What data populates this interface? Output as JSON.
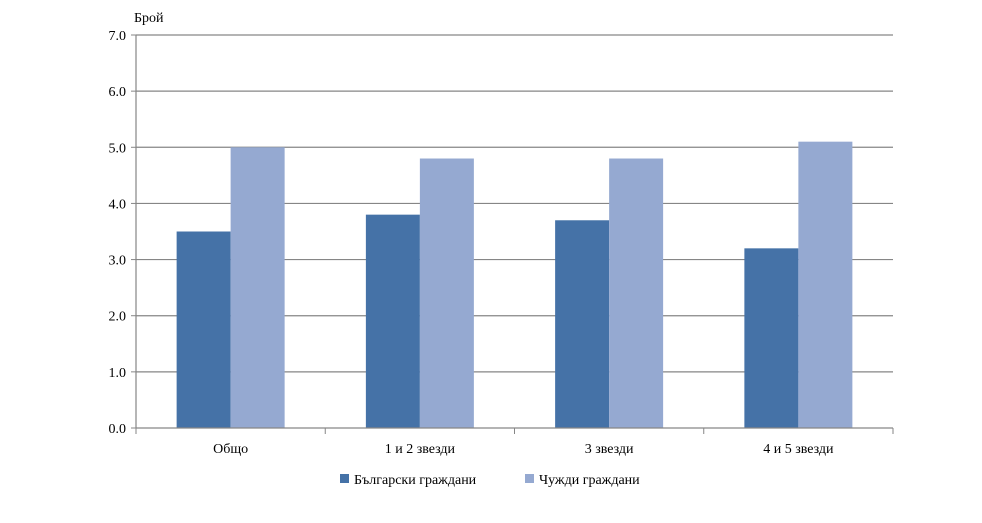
{
  "chart_data": {
    "type": "bar",
    "ylabel": "Брой",
    "xlabel": "",
    "categories": [
      "Общо",
      "1 и 2 звезди",
      "3 звезди",
      "4 и 5 звезди"
    ],
    "series": [
      {
        "name": "Български граждани",
        "values": [
          3.5,
          3.8,
          3.7,
          3.2
        ],
        "color": "#4572A7"
      },
      {
        "name": "Чужди граждани",
        "values": [
          5.0,
          4.8,
          4.8,
          5.1
        ],
        "color": "#95A9D1"
      }
    ],
    "ylim": [
      0,
      7
    ],
    "yticks": [
      "0.0",
      "1.0",
      "2.0",
      "3.0",
      "4.0",
      "5.0",
      "6.0",
      "7.0"
    ],
    "grid": true,
    "legend_position": "bottom"
  }
}
